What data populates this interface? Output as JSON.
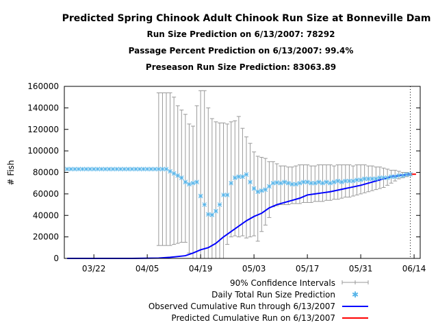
{
  "chart_data": {
    "type": "line",
    "title": "Predicted Spring Chinook Adult Chinook Run Size at Bonneville Dam",
    "subtitles": [
      "Run Size Prediction on 6/13/2007: 78292",
      "Passage Percent Prediction on 6/13/2007: 99.4%",
      "Preseason Run Size Prediction: 83063.89"
    ],
    "xlabel": "",
    "ylabel": "# Fish",
    "x_units": "days since 03/22",
    "xlim": [
      -7.75,
      85.6
    ],
    "ylim": [
      0,
      160000
    ],
    "x_ticks": [
      {
        "x": 0,
        "label": "03/22"
      },
      {
        "x": 14,
        "label": "04/05"
      },
      {
        "x": 28,
        "label": "04/19"
      },
      {
        "x": 42,
        "label": "05/03"
      },
      {
        "x": 56,
        "label": "05/17"
      },
      {
        "x": 70,
        "label": "05/31"
      },
      {
        "x": 84,
        "label": "06/14"
      }
    ],
    "y_ticks": [
      {
        "y": 0,
        "label": "0"
      },
      {
        "y": 20000,
        "label": "20000"
      },
      {
        "y": 40000,
        "label": "40000"
      },
      {
        "y": 60000,
        "label": "60000"
      },
      {
        "y": 80000,
        "label": "80000"
      },
      {
        "y": 100000,
        "label": "100000"
      },
      {
        "y": 120000,
        "label": "120000"
      },
      {
        "y": 140000,
        "label": "140000"
      },
      {
        "y": 160000,
        "label": "160000"
      }
    ],
    "current_day_marker": 83,
    "legend_position": "bottom-right",
    "legend": [
      "90% Confidence Intervals",
      "Daily Total Run Size Prediction",
      "Observed Cumulative Run through 6/13/2007",
      "Predicted Cumulative Run on 6/13/2007"
    ],
    "colors": {
      "ci": "#999999",
      "daily": "#56b4e9",
      "observed": "#0000ff",
      "predicted": "#ff0000"
    },
    "series": [
      {
        "name": "Daily Total Run Size Prediction",
        "x_start": -7,
        "values": [
          83063,
          83063,
          83063,
          83063,
          83063,
          83063,
          83063,
          83063,
          83063,
          83063,
          83063,
          83063,
          83063,
          83063,
          83063,
          83063,
          83063,
          83063,
          83063,
          83063,
          83063,
          83063,
          83063,
          83063,
          83063,
          83063,
          83063,
          81000,
          79000,
          77000,
          75000,
          71000,
          69000,
          70000,
          71000,
          58000,
          50000,
          41000,
          40500,
          44000,
          50000,
          59000,
          59000,
          70000,
          75000,
          76000,
          76000,
          78000,
          71000,
          65000,
          62000,
          63000,
          64000,
          67000,
          70000,
          70500,
          70000,
          71000,
          70000,
          69000,
          69000,
          70000,
          71000,
          71000,
          70000,
          70000,
          71000,
          70000,
          71000,
          70000,
          71000,
          72000,
          71000,
          72000,
          72000,
          72000,
          73000,
          73000,
          74000,
          74000,
          74000,
          74000,
          75000,
          75000,
          75000,
          76000,
          76000,
          77000,
          77000,
          78000,
          78292
        ]
      },
      {
        "name": "90% Confidence Intervals",
        "x_start": 17,
        "upper": [
          154000,
          154000,
          154000,
          154000,
          150000,
          142000,
          138000,
          134000,
          125000,
          123000,
          142000,
          156000,
          156000,
          140000,
          130000,
          127000,
          126000,
          126000,
          125000,
          127000,
          128000,
          132000,
          121000,
          113000,
          107000,
          99000,
          95000,
          94000,
          93000,
          90000,
          90000,
          88000,
          86000,
          86000,
          85000,
          85000,
          86000,
          87000,
          87000,
          87000,
          86000,
          86000,
          87000,
          87000,
          87000,
          87000,
          86000,
          87000,
          87000,
          87000,
          87000,
          86000,
          87000,
          87000,
          87000,
          86000,
          86000,
          85000,
          85000,
          84000,
          83000,
          82000,
          82000,
          81000,
          80000,
          80000,
          79000
        ],
        "lower": [
          12000,
          12000,
          12000,
          12000,
          13000,
          14000,
          15000,
          15000,
          5000,
          0,
          0,
          0,
          0,
          0,
          0,
          0,
          0,
          0,
          13000,
          20000,
          21000,
          20000,
          21000,
          19000,
          20000,
          21000,
          16000,
          25000,
          31000,
          38000,
          48000,
          49000,
          50000,
          50000,
          50000,
          51000,
          51000,
          51000,
          52000,
          52000,
          52000,
          53000,
          53000,
          53000,
          54000,
          54000,
          55000,
          55000,
          56000,
          57000,
          57000,
          58000,
          59000,
          60000,
          61000,
          62000,
          63000,
          64000,
          65000,
          66000,
          68000,
          70000,
          72000,
          74000,
          75000,
          76000,
          77000
        ]
      },
      {
        "name": "Observed Cumulative Run through 6/13/2007",
        "x": [
          -7,
          10,
          17,
          20,
          24,
          26,
          28,
          30,
          32,
          34,
          36,
          38,
          40,
          42,
          44,
          46,
          48,
          50,
          52,
          54,
          56,
          58,
          60,
          62,
          64,
          66,
          68,
          70,
          72,
          74,
          76,
          78,
          80,
          82,
          83
        ],
        "y": [
          0,
          0,
          300,
          1000,
          2500,
          5000,
          8000,
          10000,
          14000,
          20000,
          25000,
          30000,
          35000,
          39000,
          42000,
          47000,
          50000,
          52000,
          54000,
          56000,
          59000,
          60000,
          61000,
          62000,
          63500,
          65000,
          66500,
          68000,
          70000,
          72000,
          74000,
          76000,
          77000,
          78000,
          78292
        ]
      },
      {
        "name": "Predicted Cumulative Run on 6/13/2007",
        "x": [
          83,
          84.5
        ],
        "y": [
          78292,
          78292
        ]
      }
    ]
  }
}
